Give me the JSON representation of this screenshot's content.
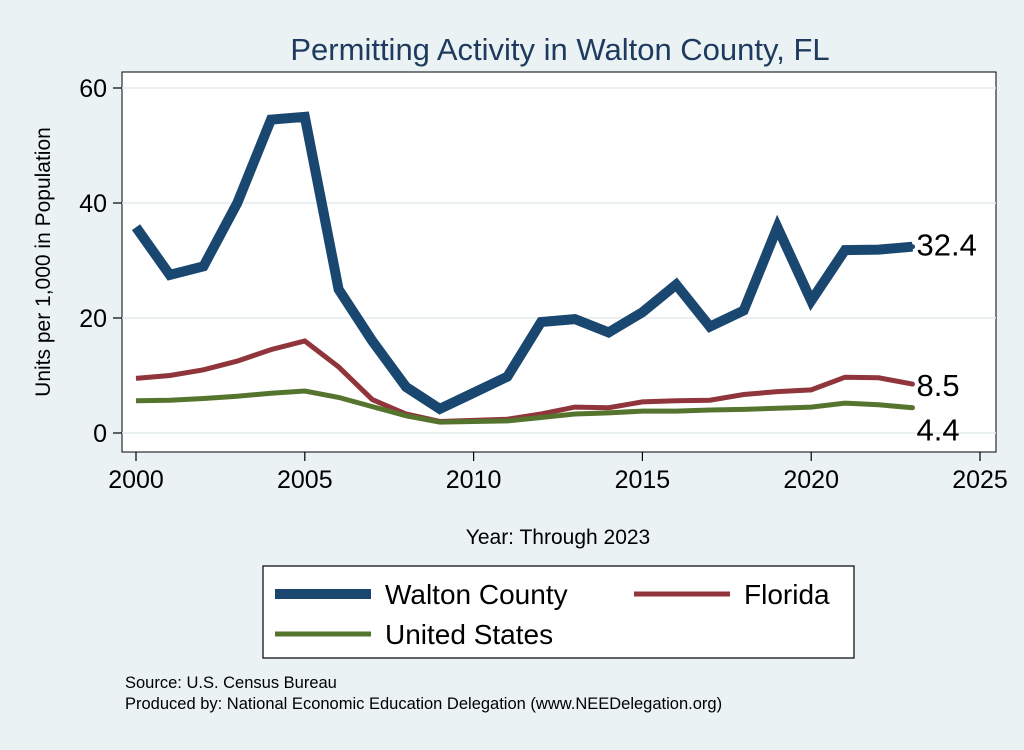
{
  "chart_data": {
    "type": "line",
    "title": "Permitting Activity in Walton County, FL",
    "xlabel": "Year: Through 2023",
    "ylabel": "Units per 1,000 in Population",
    "xlim": [
      2000,
      2025
    ],
    "ylim": [
      0,
      60
    ],
    "x_ticks": [
      2000,
      2005,
      2010,
      2015,
      2020,
      2025
    ],
    "y_ticks": [
      0,
      20,
      40,
      60
    ],
    "grid": true,
    "legend_position": "bottom",
    "x": [
      2000,
      2001,
      2002,
      2003,
      2004,
      2005,
      2006,
      2007,
      2008,
      2009,
      2010,
      2011,
      2012,
      2013,
      2014,
      2015,
      2016,
      2017,
      2018,
      2019,
      2020,
      2021,
      2022,
      2023
    ],
    "series": [
      {
        "name": "Walton County",
        "color": "#1a476f",
        "values": [
          35.8,
          27.5,
          29.0,
          40.0,
          54.5,
          55.0,
          25.0,
          16.0,
          8.0,
          4.2,
          7.0,
          9.8,
          19.3,
          19.8,
          17.5,
          21.0,
          25.8,
          18.5,
          21.3,
          35.8,
          23.0,
          31.8,
          31.9,
          32.4
        ],
        "end_label": "32.4"
      },
      {
        "name": "Florida",
        "color": "#90353b",
        "values": [
          9.5,
          10.0,
          11.0,
          12.5,
          14.5,
          16.0,
          11.5,
          5.8,
          3.3,
          2.0,
          2.2,
          2.4,
          3.3,
          4.5,
          4.4,
          5.4,
          5.6,
          5.7,
          6.7,
          7.2,
          7.5,
          9.7,
          9.6,
          8.5
        ],
        "end_label": "8.5"
      },
      {
        "name": "United States",
        "color": "#55752f",
        "values": [
          5.6,
          5.7,
          6.0,
          6.4,
          6.9,
          7.3,
          6.2,
          4.6,
          3.0,
          1.9,
          2.0,
          2.1,
          2.7,
          3.3,
          3.5,
          3.8,
          3.8,
          4.0,
          4.1,
          4.3,
          4.5,
          5.2,
          4.9,
          4.4
        ],
        "end_label": "4.4"
      }
    ],
    "notes": [
      "Source: U.S. Census Bureau",
      "Produced by: National Economic Education Delegation (www.NEEDelegation.org)"
    ]
  }
}
